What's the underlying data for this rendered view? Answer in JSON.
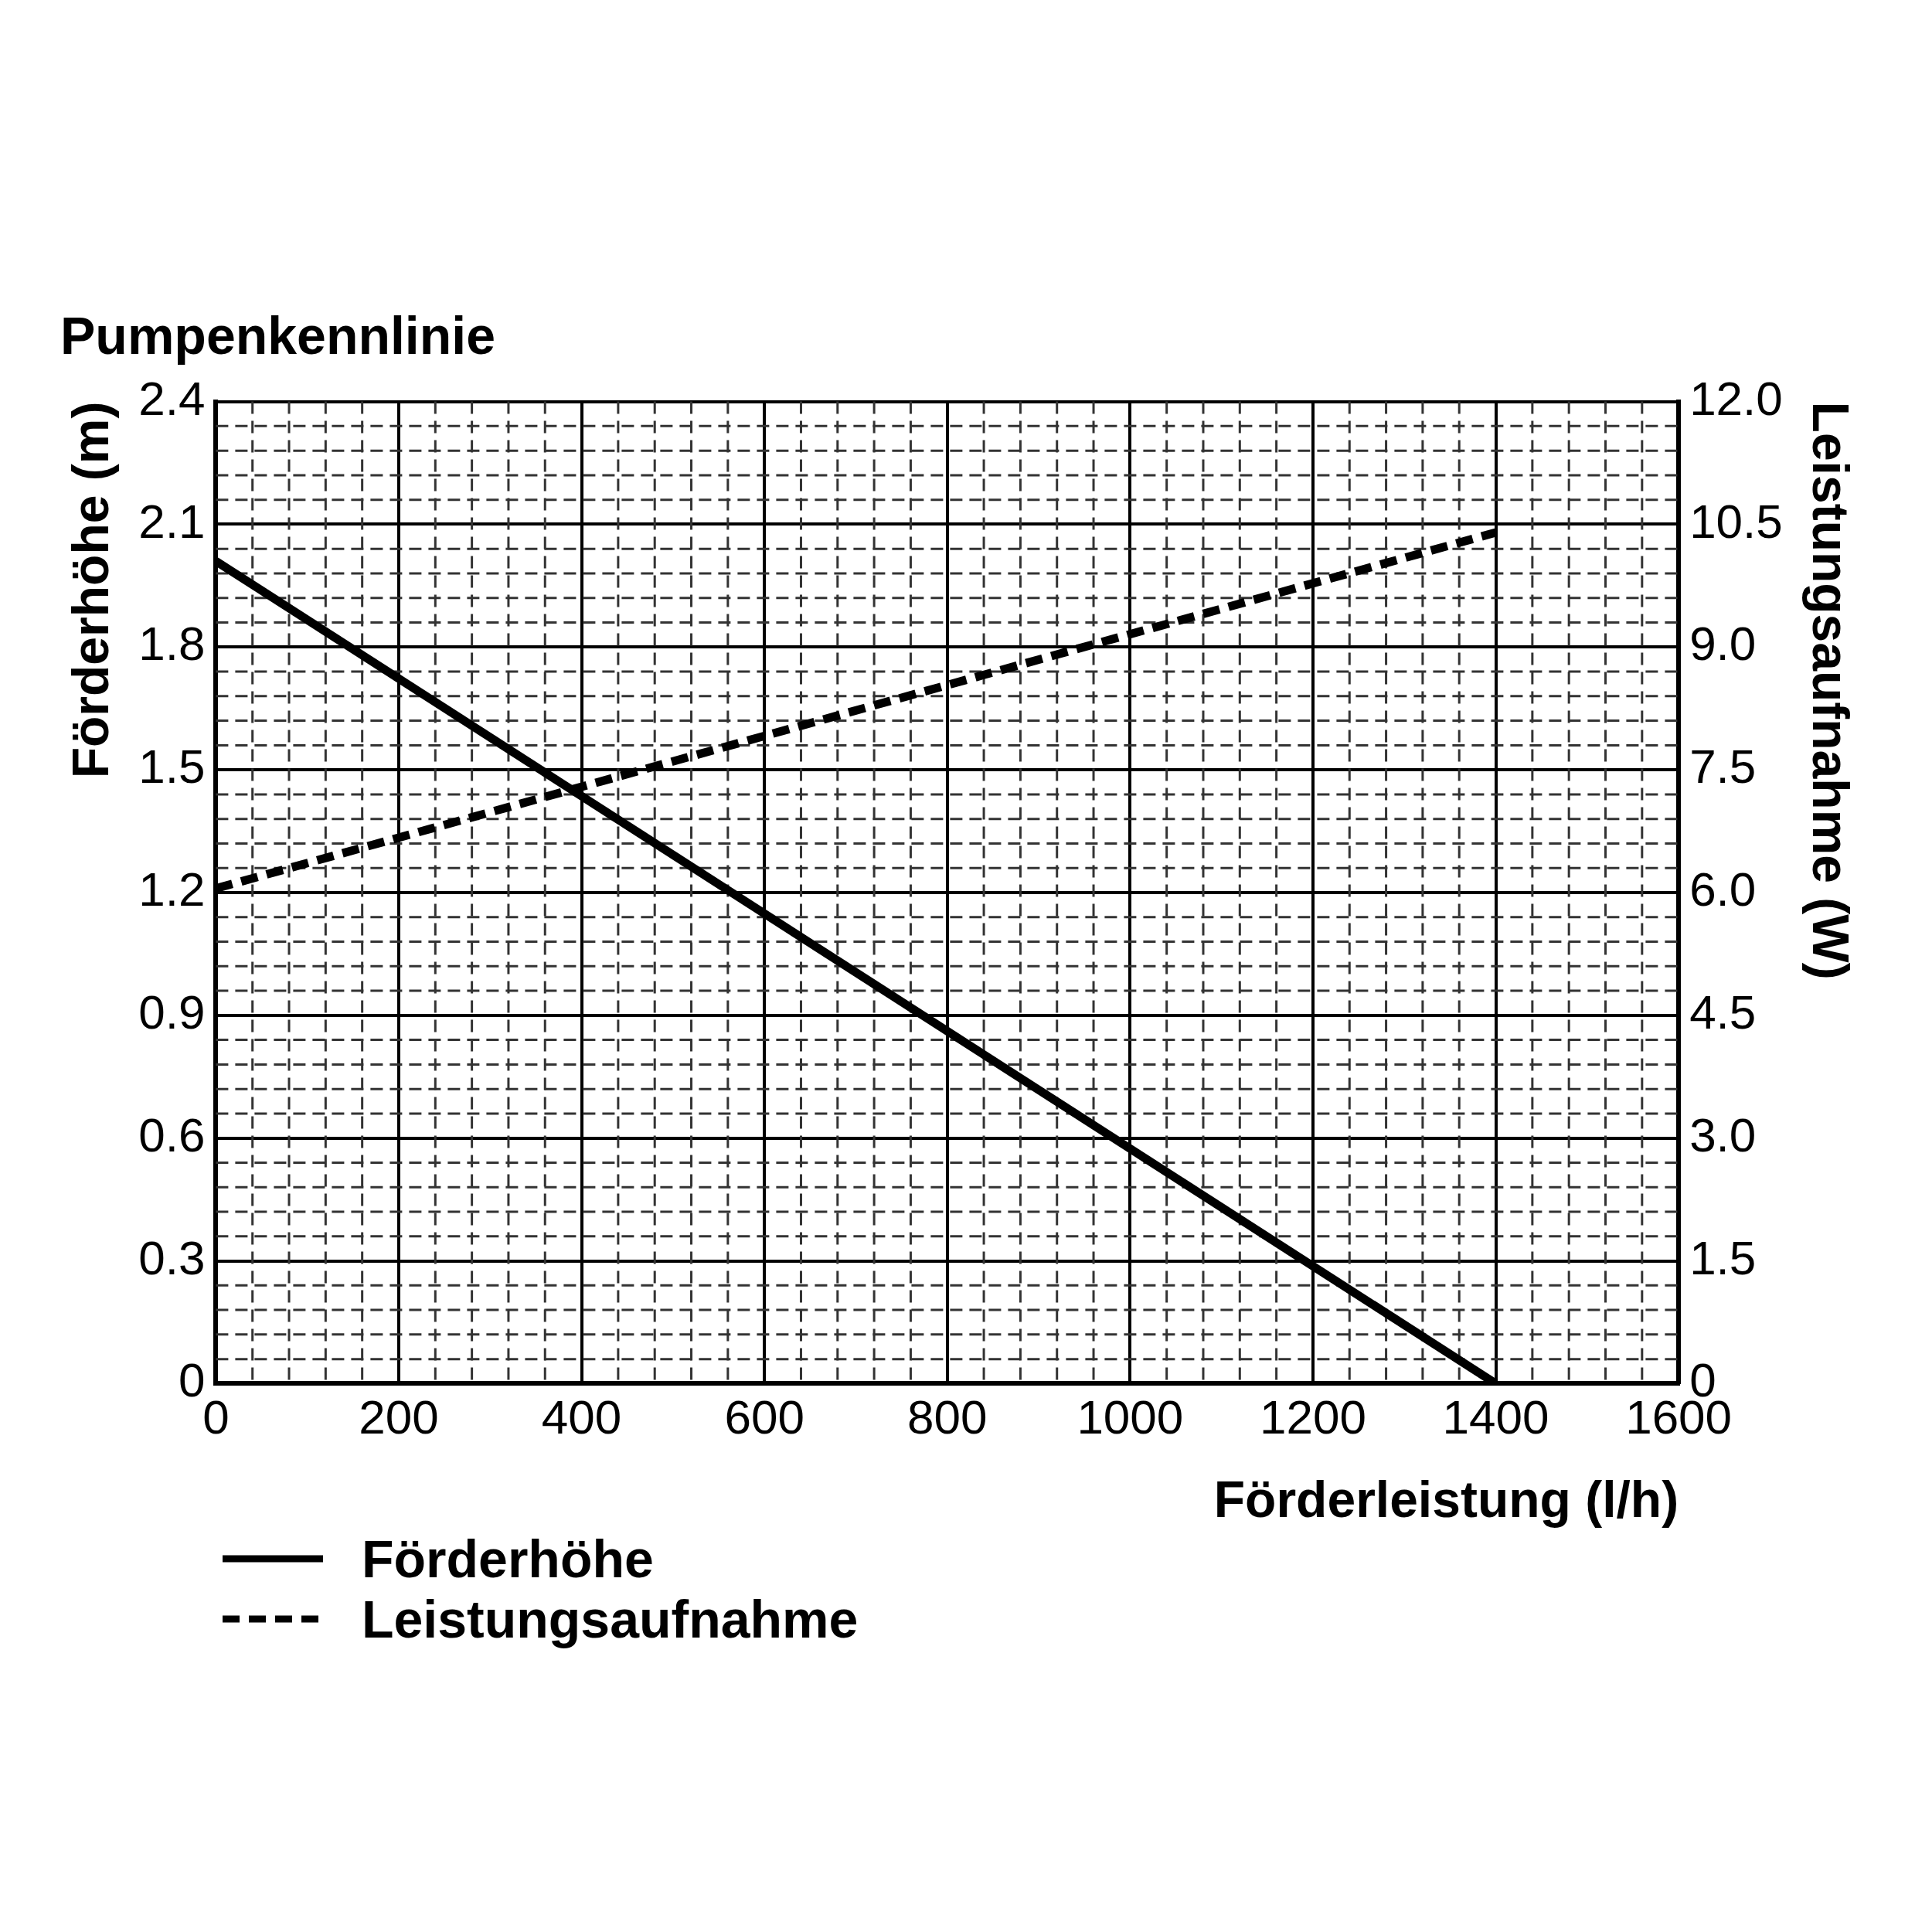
{
  "chart_data": {
    "type": "line",
    "title": "Pumpenkennlinie",
    "xlabel": "Förderleistung (l/h)",
    "ylabel": "Förderhöhe (m)",
    "y2label": "Leistungsaufnahme (W)",
    "xlim": [
      0,
      1600
    ],
    "xticks": [
      0,
      200,
      400,
      600,
      800,
      1000,
      1200,
      1400,
      1600
    ],
    "ylim": [
      0,
      2.4
    ],
    "yticks": [
      0,
      0.3,
      0.6,
      0.9,
      1.2,
      1.5,
      1.8,
      2.1,
      2.4
    ],
    "y2lim": [
      0,
      12
    ],
    "y2ticks": [
      {
        "value": 0,
        "label": "0"
      },
      {
        "value": 1.5,
        "label": "1.5"
      },
      {
        "value": 3,
        "label": "3.0"
      },
      {
        "value": 4.5,
        "label": "4.5"
      },
      {
        "value": 6,
        "label": "6.0"
      },
      {
        "value": 7.5,
        "label": "7.5"
      },
      {
        "value": 9,
        "label": "9.0"
      },
      {
        "value": 10.5,
        "label": "10.5"
      },
      {
        "value": 12,
        "label": "12.0"
      }
    ],
    "grid": true,
    "legend": "bottom left",
    "marker": "none",
    "x": [
      0,
      1400
    ],
    "series": [
      {
        "name": "Förderhöhe",
        "color": "#000000",
        "values": [
          2.01,
          0
        ],
        "line_style": "solid"
      },
      {
        "name": "Leistungsaufnahme",
        "color": "#000000",
        "values": [
          6.05,
          10.4
        ],
        "axis": "y2",
        "line_style": "dashed"
      }
    ]
  }
}
